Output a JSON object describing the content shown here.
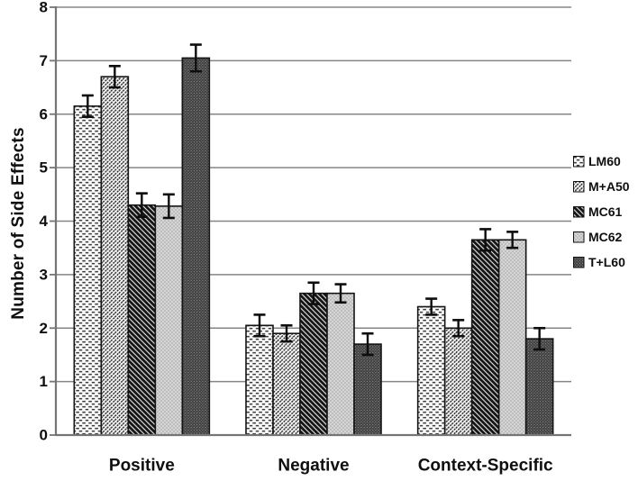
{
  "chart_data": {
    "type": "bar",
    "title": "",
    "ylabel": "Number of Side Effects",
    "xlabel": "",
    "ylim": [
      0,
      8
    ],
    "ytick_step": 1,
    "yticks": [
      0,
      1,
      2,
      3,
      4,
      5,
      6,
      7,
      8
    ],
    "grid": "horizontal",
    "legend_position": "right",
    "error_bars": true,
    "categories": [
      "Positive",
      "Negative",
      "Context-Specific"
    ],
    "series": [
      {
        "name": "LM60",
        "pattern": "dashed-brick",
        "values": [
          6.15,
          2.05,
          2.4
        ],
        "errors": [
          0.2,
          0.2,
          0.15
        ]
      },
      {
        "name": "M+A50",
        "pattern": "fine-diagonal",
        "values": [
          6.7,
          1.9,
          2.0
        ],
        "errors": [
          0.2,
          0.15,
          0.15
        ]
      },
      {
        "name": "MC61",
        "pattern": "bold-diagonal",
        "values": [
          4.3,
          2.65,
          3.65
        ],
        "errors": [
          0.22,
          0.2,
          0.2
        ]
      },
      {
        "name": "MC62",
        "pattern": "light-gray-check",
        "values": [
          4.28,
          2.65,
          3.65
        ],
        "errors": [
          0.22,
          0.17,
          0.15
        ]
      },
      {
        "name": "T+L60",
        "pattern": "dark-dot",
        "values": [
          7.05,
          1.7,
          1.8
        ],
        "errors": [
          0.25,
          0.2,
          0.2
        ]
      }
    ],
    "colors": {
      "background": "#ffffff",
      "grid": "#858585",
      "axis": "#757575",
      "bar_border": "#141414",
      "error_bar": "#0d0d0d",
      "text": "#0f0f0f"
    }
  }
}
